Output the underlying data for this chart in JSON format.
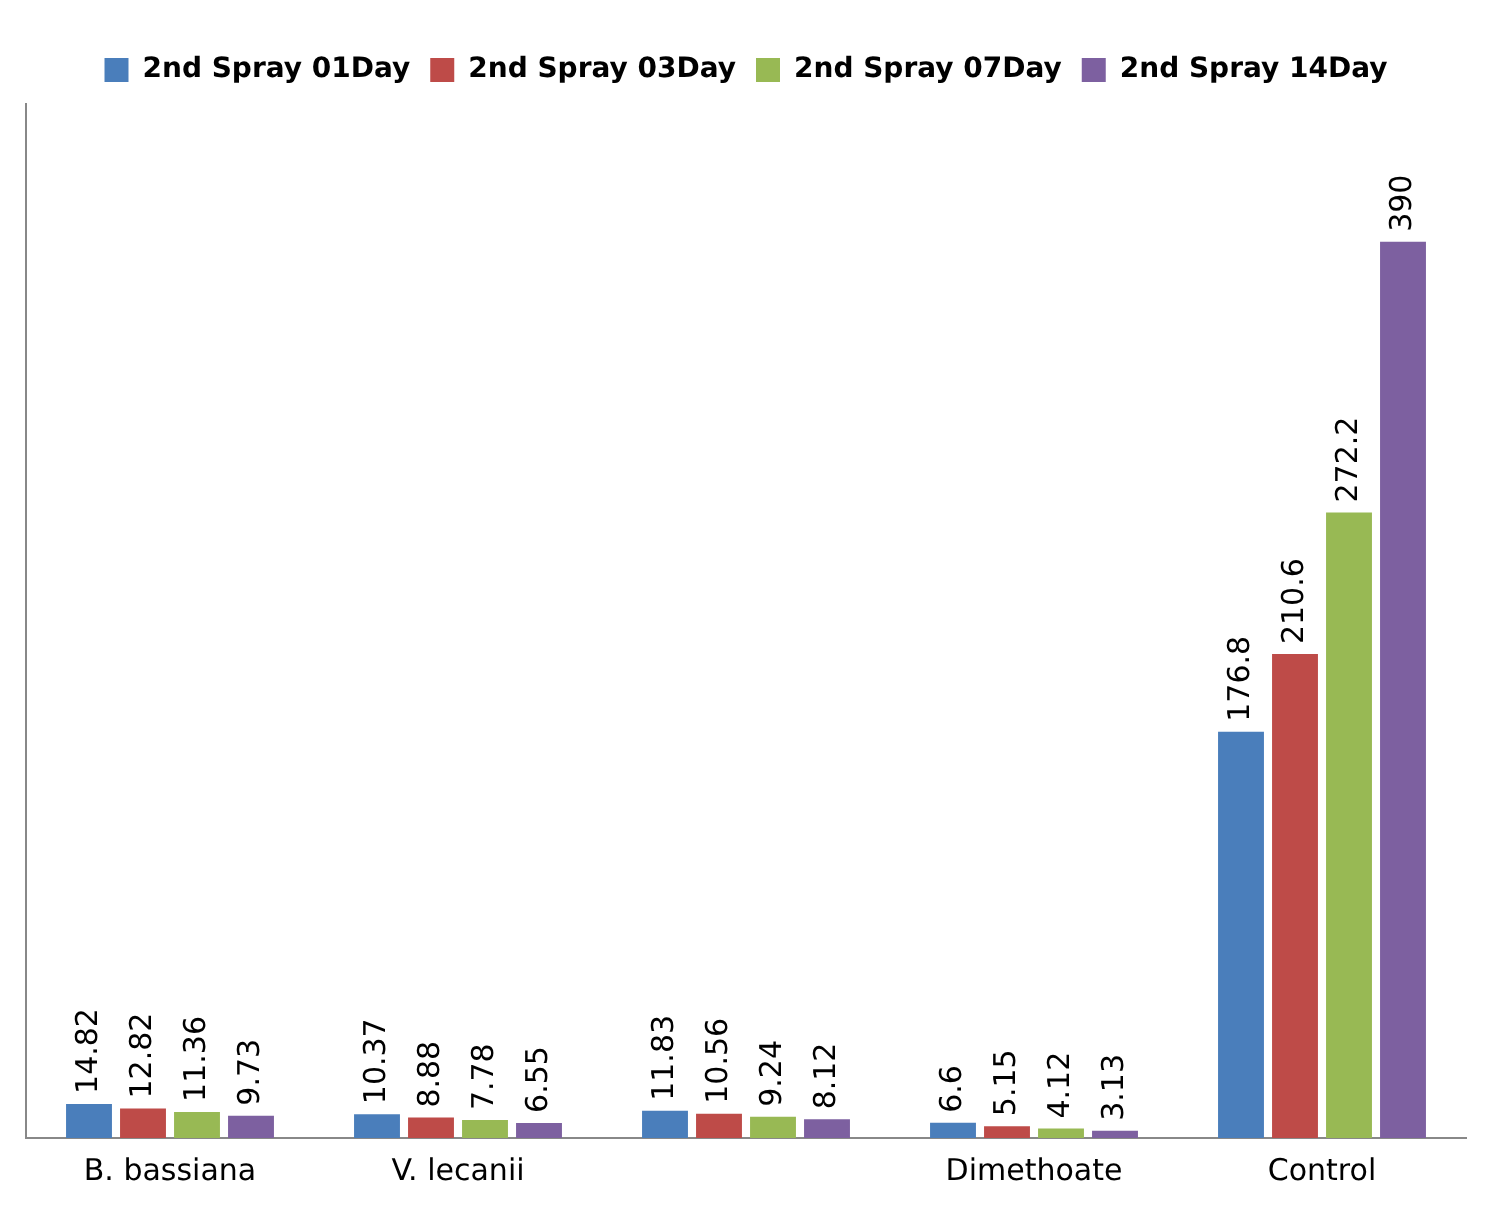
{
  "chart_data": {
    "type": "bar",
    "categories": [
      "B. bassiana",
      "V. lecanii",
      null,
      "Dimethoate",
      "Control"
    ],
    "series": [
      {
        "name": "2nd Spray 01Day",
        "color": "#4a7ebb",
        "values": [
          14.82,
          10.37,
          11.83,
          6.6,
          176.8
        ]
      },
      {
        "name": "2nd Spray 03Day",
        "color": "#be4b48",
        "values": [
          12.82,
          8.88,
          10.56,
          5.15,
          210.6
        ]
      },
      {
        "name": "2nd Spray 07Day",
        "color": "#98b954",
        "values": [
          11.36,
          7.78,
          9.24,
          4.12,
          272.2
        ]
      },
      {
        "name": "2nd Spray 14Day",
        "color": "#7d60a0",
        "values": [
          9.73,
          6.55,
          8.12,
          3.13,
          390
        ]
      }
    ],
    "data_labels": true,
    "legend": "top",
    "grid": false
  }
}
